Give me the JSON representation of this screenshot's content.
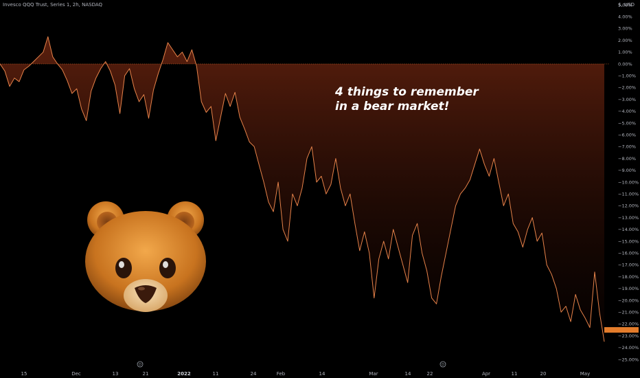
{
  "header": {
    "title": "Invesco QQQ Trust, Series 1, 2h, NASDAQ",
    "currency": "$, USD"
  },
  "headline": {
    "line1": "4 things to remember",
    "line2": "in a bear market!"
  },
  "price_tag": "",
  "colors": {
    "line": "#e8834a",
    "fill_top": "#7a2a12",
    "zero_line": "#d46a2a",
    "price_tag": "#e37c2b",
    "background": "#000000"
  },
  "icons": [
    "bear-face-icon",
    "dividend-marker-icon"
  ],
  "chart_data": {
    "type": "line",
    "title": "",
    "xlabel": "",
    "ylabel": "",
    "ylim": [
      -25,
      5
    ],
    "y_unit": "%",
    "y_ticks": [
      "5.00%",
      "4.00%",
      "3.00%",
      "2.00%",
      "1.00%",
      "0.00%",
      "−1.00%",
      "−2.00%",
      "−3.00%",
      "−4.00%",
      "−5.00%",
      "−6.00%",
      "−7.00%",
      "−8.00%",
      "−9.00%",
      "−10.00%",
      "−11.00%",
      "−12.00%",
      "−13.00%",
      "−14.00%",
      "−15.00%",
      "−16.00%",
      "−17.00%",
      "−18.00%",
      "−19.00%",
      "−20.00%",
      "−21.00%",
      "−22.00%",
      "−23.00%",
      "−24.00%",
      "−25.00%"
    ],
    "x_ticks": [
      {
        "label": "15",
        "bold": false
      },
      {
        "label": "Dec",
        "bold": false
      },
      {
        "label": "13",
        "bold": false
      },
      {
        "label": "21",
        "bold": false
      },
      {
        "label": "2022",
        "bold": true
      },
      {
        "label": "11",
        "bold": false
      },
      {
        "label": "24",
        "bold": false
      },
      {
        "label": "Feb",
        "bold": false
      },
      {
        "label": "14",
        "bold": false
      },
      {
        "label": "Mar",
        "bold": false
      },
      {
        "label": "14",
        "bold": false
      },
      {
        "label": "22",
        "bold": false
      },
      {
        "label": "Apr",
        "bold": false
      },
      {
        "label": "11",
        "bold": false
      },
      {
        "label": "20",
        "bold": false
      },
      {
        "label": "May",
        "bold": false
      }
    ],
    "series": [
      {
        "values": [
          0.0,
          -0.6,
          -1.9,
          -1.2,
          -1.5,
          -0.5,
          -0.2,
          0.2,
          0.6,
          1.0,
          2.3,
          0.6,
          0.0,
          -0.5,
          -1.4,
          -2.5,
          -2.1,
          -3.8,
          -4.8,
          -2.3,
          -1.2,
          -0.4,
          0.2,
          -0.6,
          -1.8,
          -4.2,
          -1.0,
          -0.4,
          -2.1,
          -3.2,
          -2.6,
          -4.6,
          -2.2,
          -0.8,
          0.4,
          1.8,
          1.2,
          0.6,
          1.0,
          0.2,
          1.2,
          -0.2,
          -3.2,
          -4.1,
          -3.6,
          -6.5,
          -4.5,
          -2.5,
          -3.6,
          -2.4,
          -4.5,
          -5.5,
          -6.6,
          -7.0,
          -8.5,
          -10.0,
          -11.7,
          -12.5,
          -10.0,
          -14.0,
          -15.0,
          -11.0,
          -12.0,
          -10.5,
          -8.0,
          -7.0,
          -10.0,
          -9.5,
          -11.0,
          -10.2,
          -8.0,
          -10.5,
          -12.0,
          -11.0,
          -13.5,
          -15.8,
          -14.2,
          -16.0,
          -19.8,
          -16.5,
          -15.0,
          -16.5,
          -14.0,
          -15.5,
          -17.0,
          -18.5,
          -14.5,
          -13.5,
          -16.0,
          -17.5,
          -19.8,
          -20.3,
          -18.0,
          -16.0,
          -14.0,
          -12.0,
          -11.0,
          -10.5,
          -9.8,
          -8.5,
          -7.2,
          -8.5,
          -9.5,
          -8.0,
          -10.0,
          -12.0,
          -11.0,
          -13.5,
          -14.2,
          -15.5,
          -14.0,
          -13.0,
          -15.0,
          -14.3,
          -17.0,
          -17.8,
          -19.0,
          -21.0,
          -20.5,
          -21.8,
          -19.5,
          -20.8,
          -21.5,
          -22.3,
          -17.6,
          -21.0,
          -23.5
        ]
      }
    ]
  }
}
